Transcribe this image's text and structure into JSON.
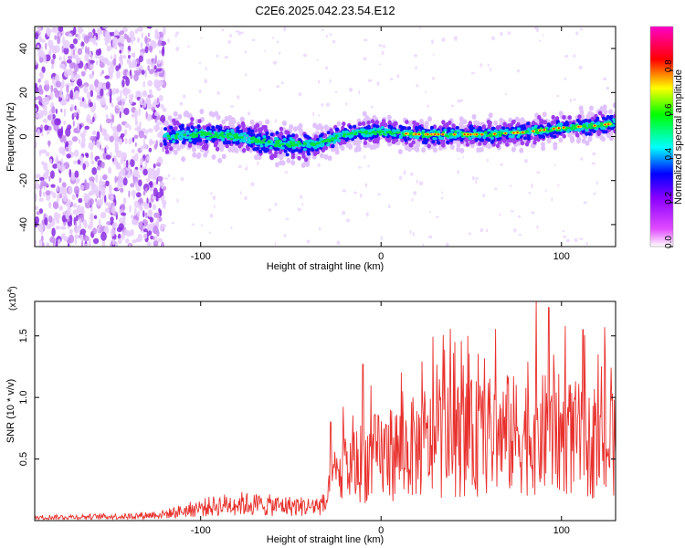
{
  "figure_title": "C2E6.2025.042.23.54.E12",
  "chart_data": [
    {
      "type": "heatmap",
      "title": "C2E6.2025.042.23.54.E12",
      "xlabel": "Height of straight line (km)",
      "ylabel": "Frequency (Hz)",
      "xlim": [
        -192,
        130
      ],
      "ylim": [
        -50,
        50
      ],
      "xticks": [
        -100,
        0,
        100
      ],
      "yticks": [
        -40,
        -20,
        0,
        20,
        40
      ],
      "colorbar": {
        "label": "Normalized spectral amplitude",
        "range": [
          0,
          1
        ],
        "ticks": [
          "0.0",
          "0.2",
          "0.4",
          "0.6",
          "0.8"
        ],
        "colors": [
          "#ffffff",
          "#e14cff",
          "#8a00ff",
          "#0000ff",
          "#00ffff",
          "#00ff00",
          "#ffff00",
          "#ff0000",
          "#ff00c8"
        ]
      },
      "ridge": {
        "comment": "approximate centre frequency (Hz) of the main signal band vs height (km)",
        "x": [
          -120,
          -100,
          -80,
          -60,
          -40,
          -30,
          -20,
          -10,
          0,
          20,
          40,
          60,
          80,
          100,
          120,
          130
        ],
        "y": [
          0,
          1,
          0,
          -3,
          -4,
          -2,
          1,
          2,
          2,
          1,
          1,
          1,
          2,
          4,
          5,
          6
        ]
      },
      "noise_region_km": [
        -192,
        -120
      ]
    },
    {
      "type": "line",
      "xlabel": "Height of straight line (km)",
      "ylabel": "SNR (10 * v/v)",
      "y_multiplier": "(x10",
      "y_multiplier_exp": "4",
      "multiplier_close": ")",
      "xlim": [
        -192,
        130
      ],
      "ylim": [
        0,
        1.78
      ],
      "xticks": [
        -100,
        0,
        100
      ],
      "yticks": [
        0.5,
        1.0,
        1.5
      ],
      "ytick_labels": [
        "0.5",
        "1.0",
        "1.5"
      ],
      "series": [
        {
          "color": "#e8302c",
          "envelope_x": [
            -192,
            -140,
            -120,
            -100,
            -80,
            -60,
            -40,
            -31,
            -25,
            -10,
            0,
            20,
            40,
            60,
            80,
            100,
            110,
            120,
            130
          ],
          "envelope_y": [
            0.03,
            0.04,
            0.06,
            0.12,
            0.16,
            0.14,
            0.13,
            0.15,
            0.42,
            0.55,
            0.6,
            0.68,
            0.75,
            0.78,
            0.8,
            0.8,
            0.75,
            0.65,
            0.7
          ],
          "peaks": [
            {
              "x": -28,
              "y": 0.8
            },
            {
              "x": -10,
              "y": 1.27
            },
            {
              "x": 12,
              "y": 1.05
            },
            {
              "x": 24,
              "y": 1.05
            },
            {
              "x": 48,
              "y": 1.5
            },
            {
              "x": 70,
              "y": 1.18
            },
            {
              "x": 86,
              "y": 1.8
            },
            {
              "x": 93,
              "y": 1.73
            },
            {
              "x": 102,
              "y": 1.58
            },
            {
              "x": 112,
              "y": 1.55
            },
            {
              "x": 124,
              "y": 1.57
            }
          ]
        }
      ]
    }
  ]
}
